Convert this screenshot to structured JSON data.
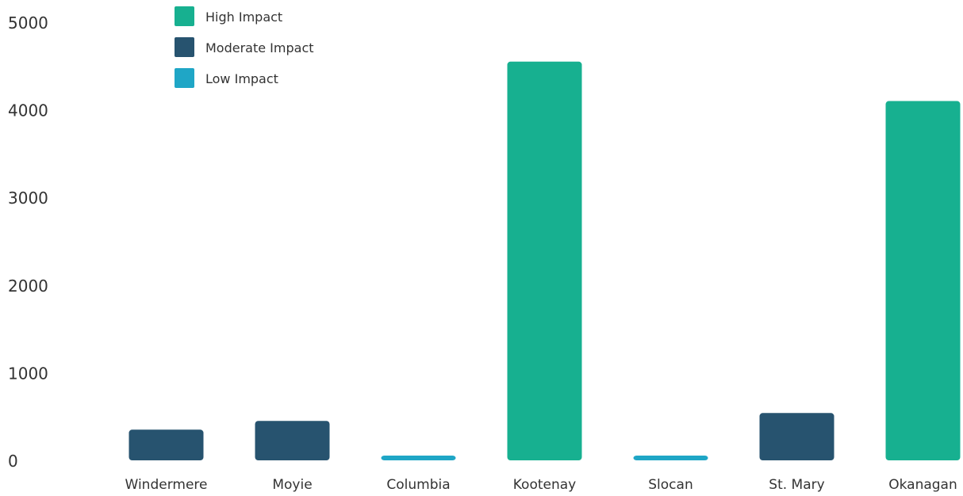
{
  "chart_data": {
    "type": "bar",
    "title": "",
    "xlabel": "",
    "ylabel": "",
    "ylim": [
      0,
      5000
    ],
    "yticks": [
      0,
      1000,
      2000,
      3000,
      4000,
      5000
    ],
    "grid": false,
    "legend_position": "top-left",
    "categories": [
      "Windermere",
      "Moyie",
      "Columbia",
      "Kootenay",
      "Slocan",
      "St. Mary",
      "Okanagan"
    ],
    "values": [
      350,
      450,
      50,
      4550,
      50,
      540,
      4100
    ],
    "impact": [
      "Moderate Impact",
      "Moderate Impact",
      "Low Impact",
      "High Impact",
      "Low Impact",
      "Moderate Impact",
      "High Impact"
    ],
    "legend": [
      {
        "name": "High Impact",
        "color": "#17b090"
      },
      {
        "name": "Moderate Impact",
        "color": "#27536f"
      },
      {
        "name": "Low Impact",
        "color": "#1fa6c6"
      }
    ]
  }
}
